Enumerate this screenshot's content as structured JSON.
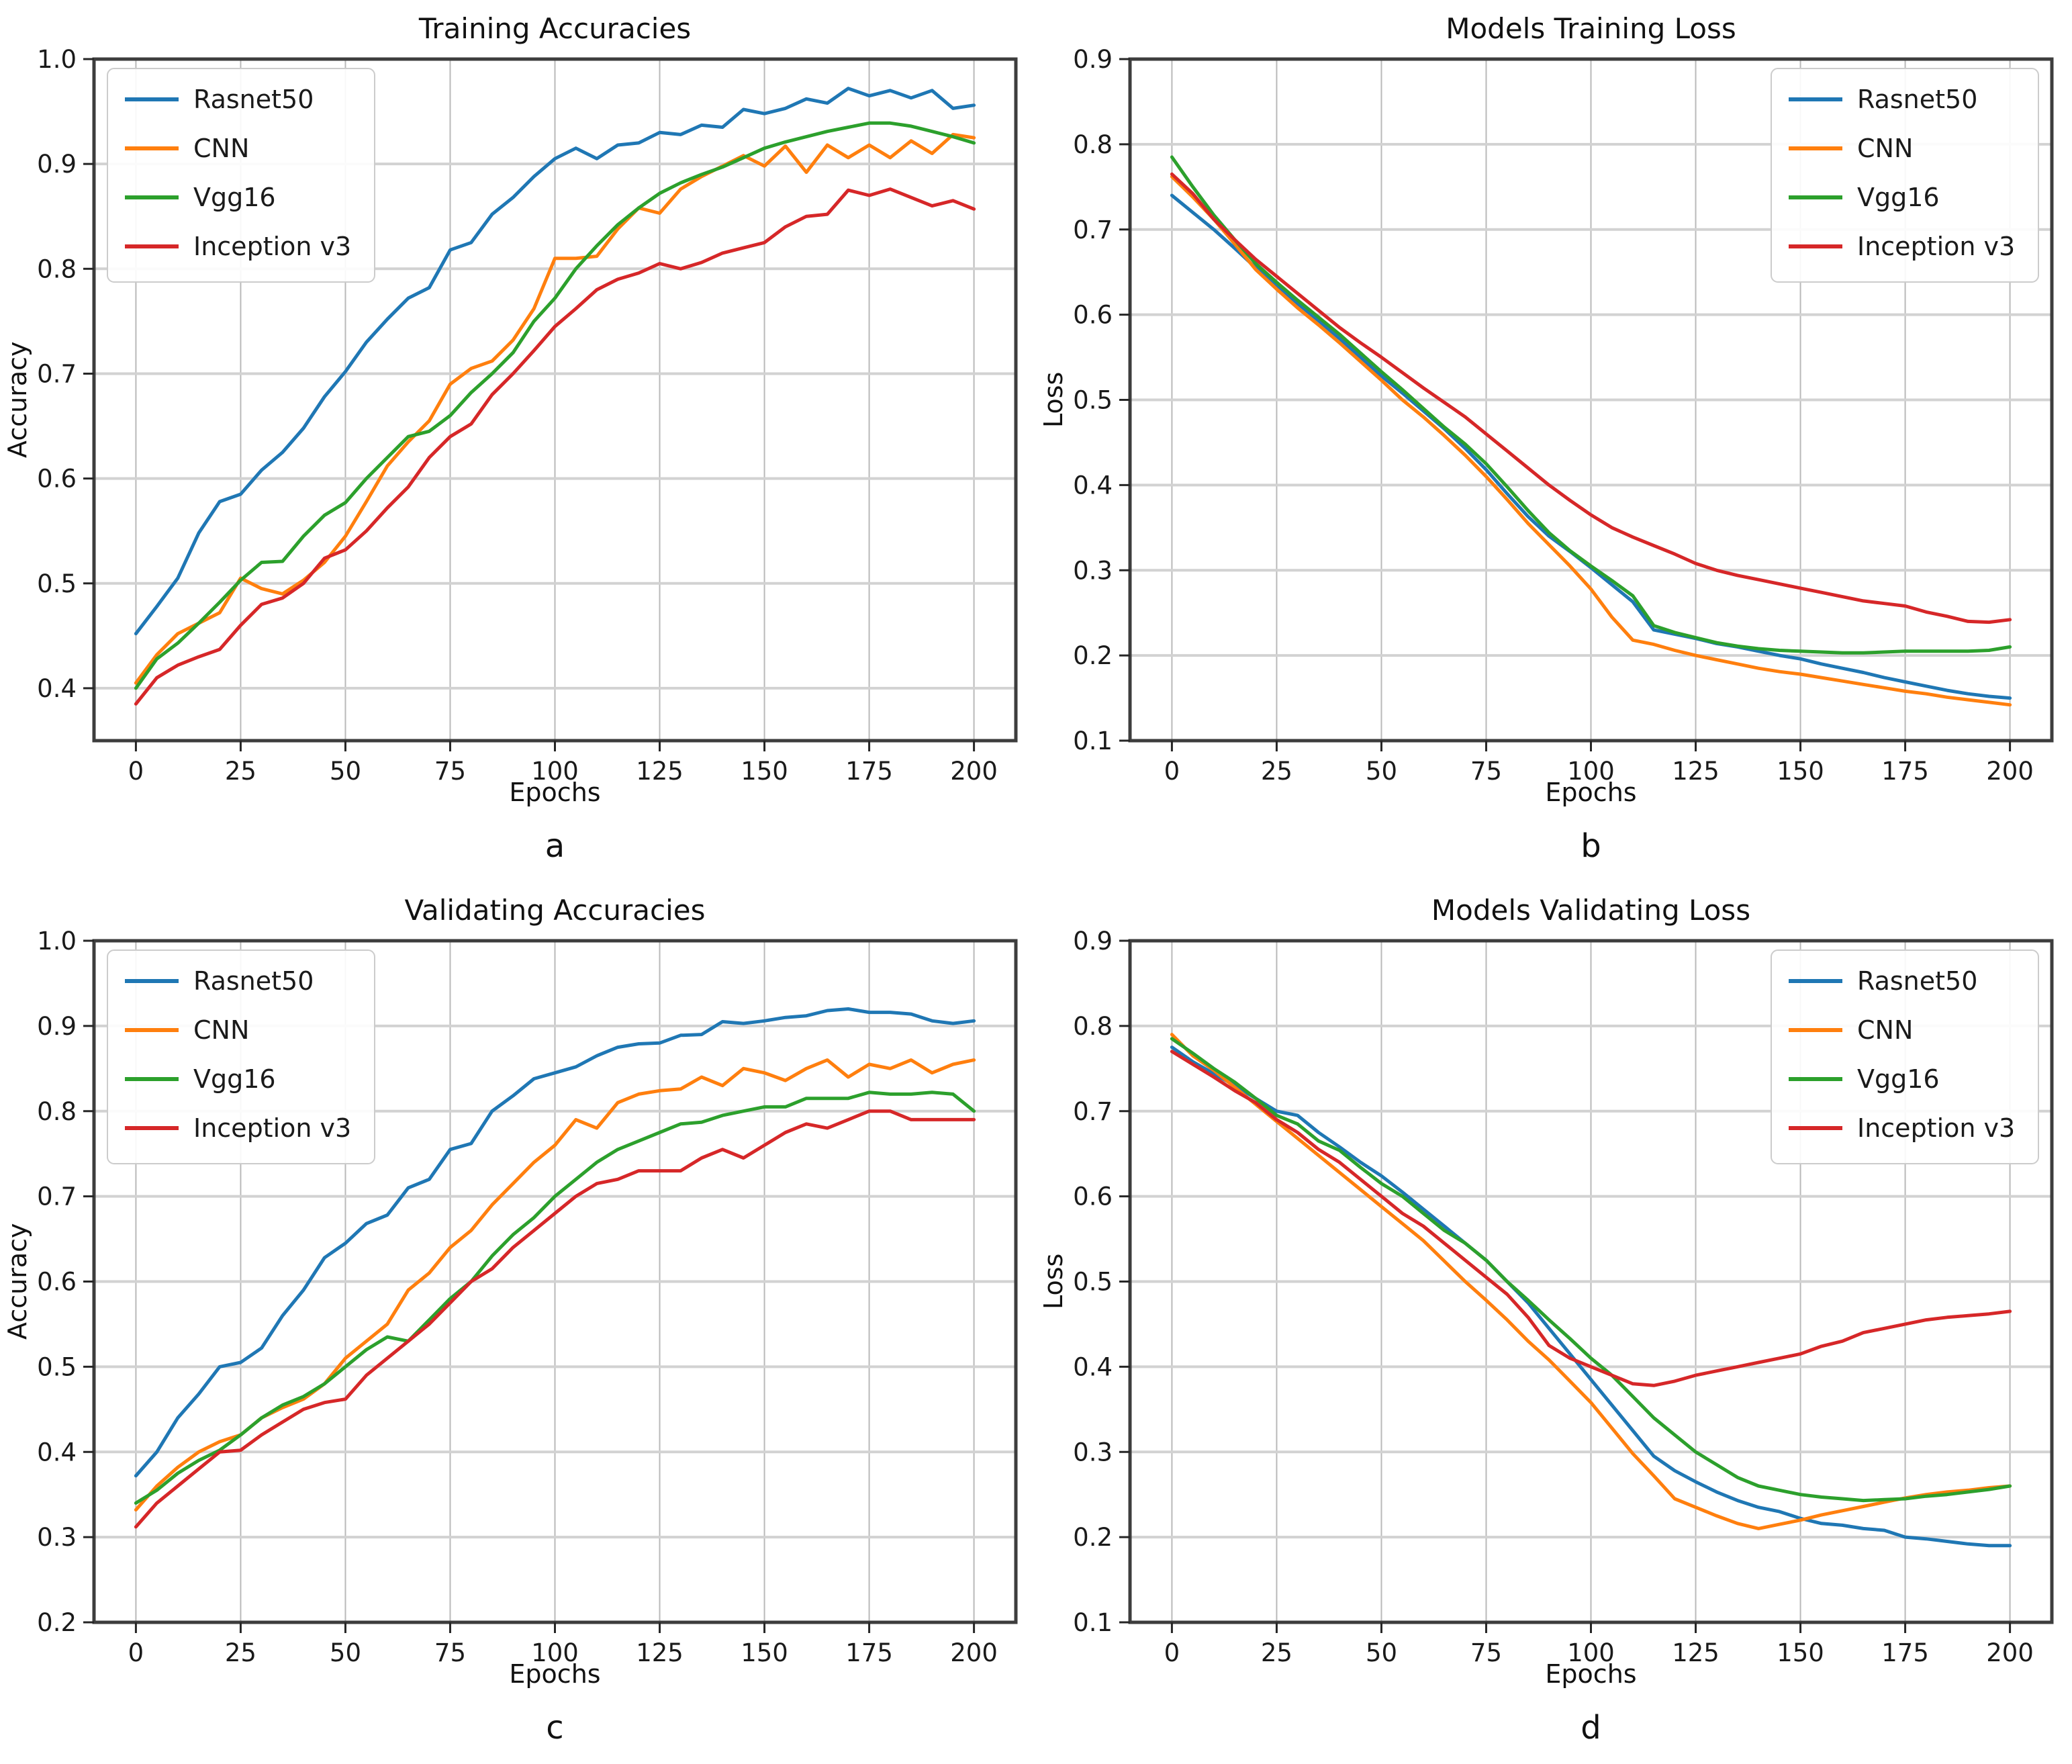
{
  "page": {
    "background": "#ffffff"
  },
  "colors": {
    "rasnet50": "#1f77b4",
    "cnn": "#ff7f0e",
    "vgg16": "#2ca02c",
    "inception_v3": "#d62728",
    "grid_vertical": "#b9b9b9",
    "grid_horizontal": "#d2d2d2",
    "spine": "#3d3d3d",
    "legend_border": "#cccccc"
  },
  "chart_data": [
    {
      "letter": "a",
      "type": "line",
      "title": "Training Accuracies",
      "xlabel": "Epochs",
      "ylabel": "Accuracy",
      "xlim": [
        -10,
        210
      ],
      "ylim": [
        0.35,
        1.0
      ],
      "xticks": [
        0,
        25,
        50,
        75,
        100,
        125,
        150,
        175,
        200
      ],
      "yticks": [
        0.4,
        0.5,
        0.6,
        0.7,
        0.8,
        0.9,
        1.0
      ],
      "grid": true,
      "legend_position": "upper-left",
      "x": [
        0,
        5,
        10,
        15,
        20,
        25,
        30,
        35,
        40,
        45,
        50,
        55,
        60,
        65,
        70,
        75,
        80,
        85,
        90,
        95,
        100,
        105,
        110,
        115,
        120,
        125,
        130,
        135,
        140,
        145,
        150,
        155,
        160,
        165,
        170,
        175,
        180,
        185,
        190,
        195,
        200
      ],
      "series": [
        {
          "name": "Rasnet50",
          "color": "#1f77b4",
          "values": [
            0.452,
            0.478,
            0.505,
            0.548,
            0.578,
            0.585,
            0.608,
            0.625,
            0.648,
            0.678,
            0.702,
            0.73,
            0.752,
            0.772,
            0.782,
            0.818,
            0.825,
            0.852,
            0.868,
            0.888,
            0.905,
            0.915,
            0.905,
            0.918,
            0.92,
            0.93,
            0.928,
            0.937,
            0.935,
            0.952,
            0.948,
            0.953,
            0.962,
            0.958,
            0.972,
            0.965,
            0.97,
            0.963,
            0.97,
            0.953,
            0.956
          ]
        },
        {
          "name": "CNN",
          "color": "#ff7f0e",
          "values": [
            0.405,
            0.432,
            0.452,
            0.462,
            0.472,
            0.505,
            0.495,
            0.49,
            0.503,
            0.52,
            0.545,
            0.578,
            0.612,
            0.635,
            0.655,
            0.69,
            0.705,
            0.712,
            0.732,
            0.762,
            0.81,
            0.81,
            0.812,
            0.838,
            0.858,
            0.853,
            0.876,
            0.888,
            0.898,
            0.908,
            0.898,
            0.917,
            0.892,
            0.918,
            0.906,
            0.918,
            0.906,
            0.922,
            0.91,
            0.928,
            0.925
          ]
        },
        {
          "name": "Vgg16",
          "color": "#2ca02c",
          "values": [
            0.4,
            0.428,
            0.443,
            0.462,
            0.482,
            0.503,
            0.52,
            0.521,
            0.545,
            0.565,
            0.577,
            0.6,
            0.62,
            0.64,
            0.645,
            0.66,
            0.682,
            0.7,
            0.72,
            0.75,
            0.772,
            0.8,
            0.822,
            0.842,
            0.858,
            0.872,
            0.882,
            0.89,
            0.897,
            0.906,
            0.915,
            0.921,
            0.926,
            0.931,
            0.935,
            0.939,
            0.939,
            0.936,
            0.931,
            0.926,
            0.92
          ]
        },
        {
          "name": "Inception v3",
          "color": "#d62728",
          "values": [
            0.385,
            0.41,
            0.422,
            0.43,
            0.437,
            0.46,
            0.48,
            0.486,
            0.5,
            0.524,
            0.532,
            0.55,
            0.572,
            0.592,
            0.62,
            0.64,
            0.652,
            0.68,
            0.7,
            0.722,
            0.745,
            0.762,
            0.78,
            0.79,
            0.796,
            0.805,
            0.8,
            0.806,
            0.815,
            0.82,
            0.825,
            0.84,
            0.85,
            0.852,
            0.875,
            0.87,
            0.876,
            0.868,
            0.86,
            0.865,
            0.857
          ]
        }
      ]
    },
    {
      "letter": "b",
      "type": "line",
      "title": "Models Training Loss",
      "xlabel": "Epochs",
      "ylabel": "Loss",
      "xlim": [
        -10,
        210
      ],
      "ylim": [
        0.1,
        0.9
      ],
      "xticks": [
        0,
        25,
        50,
        75,
        100,
        125,
        150,
        175,
        200
      ],
      "yticks": [
        0.1,
        0.2,
        0.3,
        0.4,
        0.5,
        0.6,
        0.7,
        0.8,
        0.9
      ],
      "grid": true,
      "legend_position": "upper-right",
      "x": [
        0,
        5,
        10,
        15,
        20,
        25,
        30,
        35,
        40,
        45,
        50,
        55,
        60,
        65,
        70,
        75,
        80,
        85,
        90,
        95,
        100,
        105,
        110,
        115,
        120,
        125,
        130,
        135,
        140,
        145,
        150,
        155,
        160,
        165,
        170,
        175,
        180,
        185,
        190,
        195,
        200
      ],
      "series": [
        {
          "name": "Rasnet50",
          "color": "#1f77b4",
          "values": [
            0.74,
            0.72,
            0.7,
            0.678,
            0.655,
            0.635,
            0.613,
            0.593,
            0.572,
            0.55,
            0.528,
            0.508,
            0.487,
            0.466,
            0.443,
            0.418,
            0.39,
            0.363,
            0.34,
            0.322,
            0.303,
            0.283,
            0.263,
            0.23,
            0.225,
            0.22,
            0.214,
            0.21,
            0.205,
            0.2,
            0.196,
            0.19,
            0.185,
            0.18,
            0.174,
            0.169,
            0.164,
            0.159,
            0.155,
            0.152,
            0.15
          ]
        },
        {
          "name": "CNN",
          "color": "#ff7f0e",
          "values": [
            0.762,
            0.738,
            0.712,
            0.683,
            0.653,
            0.63,
            0.608,
            0.588,
            0.567,
            0.545,
            0.523,
            0.5,
            0.48,
            0.458,
            0.435,
            0.41,
            0.383,
            0.355,
            0.33,
            0.305,
            0.278,
            0.245,
            0.218,
            0.213,
            0.206,
            0.2,
            0.195,
            0.19,
            0.185,
            0.181,
            0.178,
            0.174,
            0.17,
            0.166,
            0.162,
            0.158,
            0.155,
            0.151,
            0.148,
            0.145,
            0.142
          ]
        },
        {
          "name": "Vgg16",
          "color": "#2ca02c",
          "values": [
            0.785,
            0.75,
            0.717,
            0.688,
            0.66,
            0.638,
            0.617,
            0.597,
            0.577,
            0.555,
            0.533,
            0.512,
            0.49,
            0.468,
            0.448,
            0.425,
            0.398,
            0.37,
            0.344,
            0.323,
            0.305,
            0.288,
            0.27,
            0.235,
            0.227,
            0.221,
            0.215,
            0.211,
            0.208,
            0.206,
            0.205,
            0.204,
            0.203,
            0.203,
            0.204,
            0.205,
            0.205,
            0.205,
            0.205,
            0.206,
            0.21
          ]
        },
        {
          "name": "Inception v3",
          "color": "#d62728",
          "values": [
            0.765,
            0.742,
            0.712,
            0.688,
            0.665,
            0.645,
            0.625,
            0.605,
            0.585,
            0.567,
            0.55,
            0.532,
            0.514,
            0.497,
            0.48,
            0.46,
            0.44,
            0.42,
            0.4,
            0.382,
            0.365,
            0.35,
            0.339,
            0.329,
            0.319,
            0.308,
            0.3,
            0.294,
            0.289,
            0.284,
            0.279,
            0.274,
            0.269,
            0.264,
            0.261,
            0.258,
            0.251,
            0.246,
            0.24,
            0.239,
            0.242
          ]
        }
      ]
    },
    {
      "letter": "c",
      "type": "line",
      "title": "Validating Accuracies",
      "xlabel": "Epochs",
      "ylabel": "Accuracy",
      "xlim": [
        -10,
        210
      ],
      "ylim": [
        0.2,
        1.0
      ],
      "xticks": [
        0,
        25,
        50,
        75,
        100,
        125,
        150,
        175,
        200
      ],
      "yticks": [
        0.2,
        0.3,
        0.4,
        0.5,
        0.6,
        0.7,
        0.8,
        0.9,
        1.0
      ],
      "grid": true,
      "legend_position": "upper-left",
      "x": [
        0,
        5,
        10,
        15,
        20,
        25,
        30,
        35,
        40,
        45,
        50,
        55,
        60,
        65,
        70,
        75,
        80,
        85,
        90,
        95,
        100,
        105,
        110,
        115,
        120,
        125,
        130,
        135,
        140,
        145,
        150,
        155,
        160,
        165,
        170,
        175,
        180,
        185,
        190,
        195,
        200
      ],
      "series": [
        {
          "name": "Rasnet50",
          "color": "#1f77b4",
          "values": [
            0.372,
            0.4,
            0.44,
            0.468,
            0.5,
            0.505,
            0.522,
            0.56,
            0.59,
            0.628,
            0.645,
            0.668,
            0.678,
            0.71,
            0.72,
            0.755,
            0.762,
            0.8,
            0.818,
            0.838,
            0.845,
            0.852,
            0.865,
            0.875,
            0.879,
            0.88,
            0.889,
            0.89,
            0.905,
            0.903,
            0.906,
            0.91,
            0.912,
            0.918,
            0.92,
            0.916,
            0.916,
            0.914,
            0.906,
            0.903,
            0.906
          ]
        },
        {
          "name": "CNN",
          "color": "#ff7f0e",
          "values": [
            0.332,
            0.36,
            0.382,
            0.4,
            0.412,
            0.42,
            0.44,
            0.452,
            0.462,
            0.48,
            0.51,
            0.53,
            0.55,
            0.59,
            0.61,
            0.64,
            0.66,
            0.69,
            0.715,
            0.74,
            0.76,
            0.79,
            0.78,
            0.81,
            0.82,
            0.824,
            0.826,
            0.84,
            0.83,
            0.85,
            0.845,
            0.836,
            0.85,
            0.86,
            0.84,
            0.855,
            0.85,
            0.86,
            0.845,
            0.855,
            0.86
          ]
        },
        {
          "name": "Vgg16",
          "color": "#2ca02c",
          "values": [
            0.34,
            0.355,
            0.375,
            0.39,
            0.402,
            0.42,
            0.44,
            0.455,
            0.465,
            0.48,
            0.5,
            0.52,
            0.535,
            0.53,
            0.555,
            0.58,
            0.6,
            0.63,
            0.655,
            0.675,
            0.7,
            0.72,
            0.74,
            0.755,
            0.765,
            0.775,
            0.785,
            0.787,
            0.795,
            0.8,
            0.805,
            0.805,
            0.815,
            0.815,
            0.815,
            0.822,
            0.82,
            0.82,
            0.822,
            0.82,
            0.8
          ]
        },
        {
          "name": "Inception v3",
          "color": "#d62728",
          "values": [
            0.312,
            0.34,
            0.36,
            0.38,
            0.4,
            0.402,
            0.42,
            0.435,
            0.45,
            0.458,
            0.462,
            0.49,
            0.51,
            0.53,
            0.55,
            0.575,
            0.6,
            0.615,
            0.64,
            0.66,
            0.68,
            0.7,
            0.715,
            0.72,
            0.73,
            0.73,
            0.73,
            0.745,
            0.755,
            0.745,
            0.76,
            0.775,
            0.785,
            0.78,
            0.79,
            0.8,
            0.8,
            0.79,
            0.79,
            0.79,
            0.79
          ]
        }
      ]
    },
    {
      "letter": "d",
      "type": "line",
      "title": "Models Validating Loss",
      "xlabel": "Epochs",
      "ylabel": "Loss",
      "xlim": [
        -10,
        210
      ],
      "ylim": [
        0.1,
        0.9
      ],
      "xticks": [
        0,
        25,
        50,
        75,
        100,
        125,
        150,
        175,
        200
      ],
      "yticks": [
        0.1,
        0.2,
        0.3,
        0.4,
        0.5,
        0.6,
        0.7,
        0.8,
        0.9
      ],
      "grid": true,
      "legend_position": "upper-right",
      "x": [
        0,
        5,
        10,
        15,
        20,
        25,
        30,
        35,
        40,
        45,
        50,
        55,
        60,
        65,
        70,
        75,
        80,
        85,
        90,
        95,
        100,
        105,
        110,
        115,
        120,
        125,
        130,
        135,
        140,
        145,
        150,
        155,
        160,
        165,
        170,
        175,
        180,
        185,
        190,
        195,
        200
      ],
      "series": [
        {
          "name": "Rasnet50",
          "color": "#1f77b4",
          "values": [
            0.775,
            0.758,
            0.744,
            0.73,
            0.715,
            0.7,
            0.695,
            0.675,
            0.658,
            0.64,
            0.624,
            0.605,
            0.585,
            0.565,
            0.545,
            0.525,
            0.5,
            0.475,
            0.445,
            0.415,
            0.385,
            0.355,
            0.325,
            0.295,
            0.278,
            0.265,
            0.253,
            0.243,
            0.235,
            0.23,
            0.222,
            0.216,
            0.214,
            0.21,
            0.208,
            0.2,
            0.198,
            0.195,
            0.192,
            0.19,
            0.19
          ]
        },
        {
          "name": "CNN",
          "color": "#ff7f0e",
          "values": [
            0.79,
            0.765,
            0.748,
            0.728,
            0.708,
            0.688,
            0.668,
            0.648,
            0.628,
            0.608,
            0.588,
            0.568,
            0.548,
            0.524,
            0.5,
            0.478,
            0.455,
            0.43,
            0.408,
            0.383,
            0.358,
            0.328,
            0.298,
            0.272,
            0.245,
            0.235,
            0.225,
            0.216,
            0.21,
            0.215,
            0.22,
            0.226,
            0.231,
            0.236,
            0.241,
            0.246,
            0.25,
            0.253,
            0.255,
            0.258,
            0.26
          ]
        },
        {
          "name": "Vgg16",
          "color": "#2ca02c",
          "values": [
            0.785,
            0.768,
            0.75,
            0.734,
            0.715,
            0.695,
            0.685,
            0.665,
            0.654,
            0.634,
            0.615,
            0.6,
            0.58,
            0.56,
            0.545,
            0.525,
            0.5,
            0.478,
            0.455,
            0.433,
            0.41,
            0.39,
            0.365,
            0.34,
            0.32,
            0.3,
            0.285,
            0.27,
            0.26,
            0.255,
            0.25,
            0.247,
            0.245,
            0.243,
            0.244,
            0.245,
            0.248,
            0.25,
            0.253,
            0.256,
            0.26
          ]
        },
        {
          "name": "Inception v3",
          "color": "#d62728",
          "values": [
            0.77,
            0.755,
            0.74,
            0.724,
            0.71,
            0.69,
            0.675,
            0.655,
            0.64,
            0.62,
            0.6,
            0.58,
            0.565,
            0.545,
            0.525,
            0.505,
            0.485,
            0.458,
            0.425,
            0.41,
            0.4,
            0.39,
            0.38,
            0.378,
            0.383,
            0.39,
            0.395,
            0.4,
            0.405,
            0.41,
            0.415,
            0.424,
            0.43,
            0.44,
            0.445,
            0.45,
            0.455,
            0.458,
            0.46,
            0.462,
            0.465
          ]
        }
      ]
    }
  ]
}
